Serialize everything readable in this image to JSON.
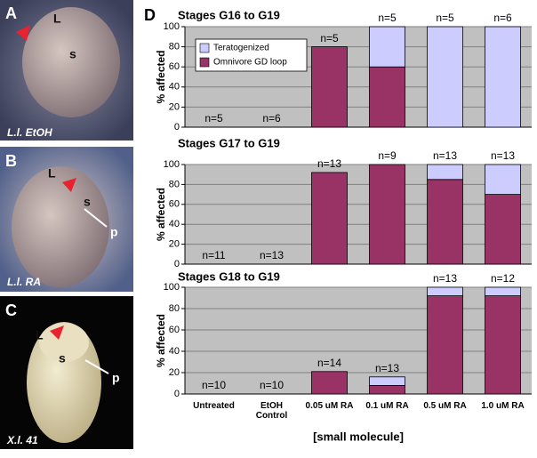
{
  "figure": {
    "panel_label": "D",
    "photos": [
      {
        "panel": "A",
        "labels": [
          "L",
          "s"
        ],
        "caption": "L.l. EtOH"
      },
      {
        "panel": "B",
        "labels": [
          "L",
          "s",
          "p"
        ],
        "caption": "L.l. RA"
      },
      {
        "panel": "C",
        "labels": [
          "L",
          "s",
          "p"
        ],
        "caption": "X.l. 41"
      }
    ]
  },
  "chart_data": [
    {
      "type": "bar",
      "stacked": true,
      "title": "Stages G16 to G19",
      "ylabel": "% affected",
      "ylim": [
        0,
        100
      ],
      "yticks": [
        0,
        20,
        40,
        60,
        80,
        100
      ],
      "grid": true,
      "legend": "upper left",
      "series": [
        {
          "name": "Omnivore GD loop",
          "color": "#993366",
          "values": [
            0,
            0,
            80,
            60,
            0,
            0
          ]
        },
        {
          "name": "Teratogenized",
          "color": "#ccccff",
          "values": [
            0,
            0,
            0,
            40,
            100,
            100
          ]
        }
      ],
      "annotations": [
        "n=5",
        "n=6",
        "n=5",
        "n=5",
        "n=5",
        "n=6"
      ]
    },
    {
      "type": "bar",
      "stacked": true,
      "title": "Stages G17 to G19",
      "ylabel": "% affected",
      "ylim": [
        0,
        100
      ],
      "yticks": [
        0,
        20,
        40,
        60,
        80,
        100
      ],
      "grid": true,
      "series": [
        {
          "name": "Omnivore GD loop",
          "color": "#993366",
          "values": [
            0,
            0,
            92,
            100,
            85,
            70
          ]
        },
        {
          "name": "Teratogenized",
          "color": "#ccccff",
          "values": [
            0,
            0,
            0,
            0,
            15,
            30
          ]
        }
      ],
      "annotations": [
        "n=11",
        "n=13",
        "n=13",
        "n=9",
        "n=13",
        "n=13"
      ]
    },
    {
      "type": "bar",
      "stacked": true,
      "title": "Stages G18 to G19",
      "ylabel": "% affected",
      "xlabel": "[small molecule]",
      "categories": [
        "Untreated",
        "EtOH Control",
        "0.05 uM RA",
        "0.1 uM RA",
        "0.5 uM RA",
        "1.0 uM RA"
      ],
      "ylim": [
        0,
        100
      ],
      "yticks": [
        0,
        20,
        40,
        60,
        80,
        100
      ],
      "grid": true,
      "series": [
        {
          "name": "Omnivore GD loop",
          "color": "#993366",
          "values": [
            0,
            0,
            21,
            8,
            92,
            92
          ]
        },
        {
          "name": "Teratogenized",
          "color": "#ccccff",
          "values": [
            0,
            0,
            0,
            8,
            8,
            8
          ]
        }
      ],
      "annotations": [
        "n=10",
        "n=10",
        "n=14",
        "n=13",
        "n=13",
        "n=12"
      ]
    }
  ]
}
